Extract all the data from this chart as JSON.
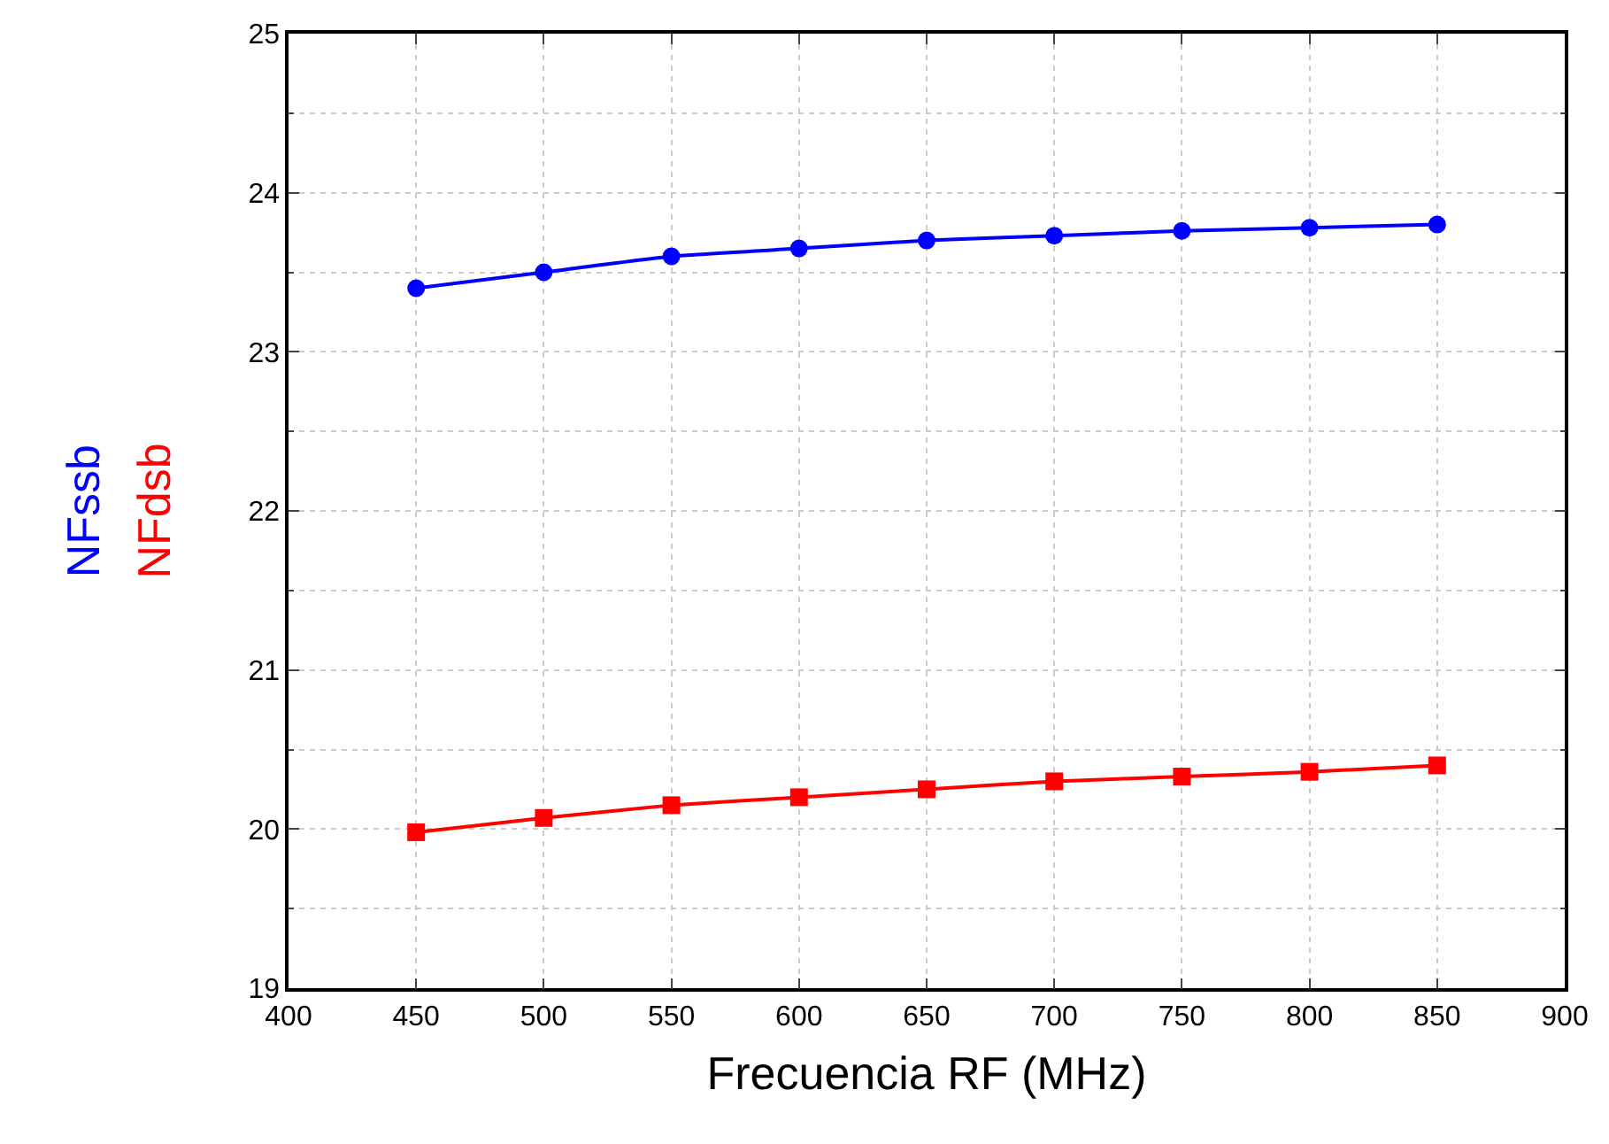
{
  "chart_data": {
    "type": "line",
    "xlabel": "Frecuencia RF (MHz)",
    "x": [
      450,
      500,
      550,
      600,
      650,
      700,
      750,
      800,
      850
    ],
    "series": [
      {
        "name": "NFssb",
        "color": "#0000ff",
        "marker": "circle",
        "values": [
          23.4,
          23.5,
          23.6,
          23.65,
          23.7,
          23.73,
          23.76,
          23.78,
          23.8
        ]
      },
      {
        "name": "NFdsb",
        "color": "#ff0000",
        "marker": "square",
        "values": [
          19.98,
          20.07,
          20.15,
          20.2,
          20.25,
          20.3,
          20.33,
          20.36,
          20.4
        ]
      }
    ],
    "xlim": [
      400,
      900
    ],
    "xticks": [
      400,
      450,
      500,
      550,
      600,
      650,
      700,
      750,
      800,
      850,
      900
    ],
    "ylim": [
      19,
      25
    ],
    "yticks": [
      19,
      20,
      21,
      22,
      23,
      24,
      25
    ],
    "grid": true,
    "line_style": "solid",
    "legend": false
  }
}
